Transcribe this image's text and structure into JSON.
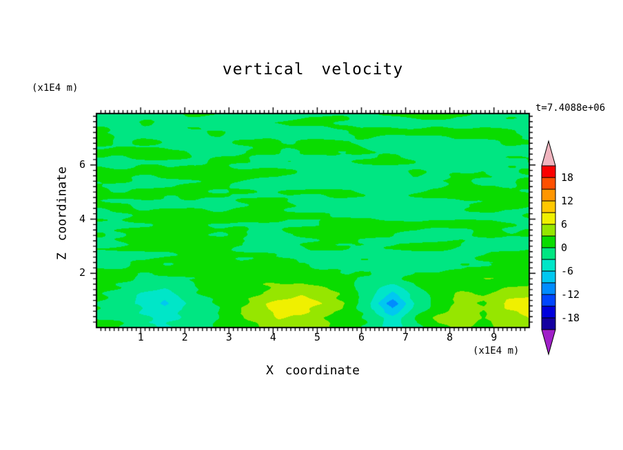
{
  "chart_data": {
    "type": "heatmap",
    "title": "vertical velocity",
    "xlabel": "X coordinate",
    "ylabel": "Z coordinate",
    "x_unit": "(x1E4 m)",
    "y_unit": "(x1E4 m)",
    "time_annotation": "t=7.4088e+06",
    "xlim": [
      0,
      9.8
    ],
    "ylim": [
      0,
      7.9
    ],
    "x_ticks": [
      1,
      2,
      3,
      4,
      5,
      6,
      7,
      8,
      9
    ],
    "y_ticks": [
      2,
      4,
      6
    ],
    "contour_levels": [
      -21,
      -18,
      -15,
      -12,
      -9,
      -6,
      -3,
      0,
      3,
      6,
      9,
      12,
      15,
      18,
      21
    ],
    "contour_colors_low_to_high": [
      "#1400A0",
      "#0000DC",
      "#0046FF",
      "#008CFF",
      "#00C8F0",
      "#00E6C8",
      "#00E682",
      "#0ADC00",
      "#96E600",
      "#F0F000",
      "#FFC800",
      "#FF9600",
      "#FF5000",
      "#FA0000"
    ],
    "under_arrow_color": "#A020C8",
    "over_arrow_color": "#F0B4BE",
    "colorbar_tick_labels": [
      "18",
      "12",
      "6",
      "0",
      "-6",
      "-12",
      "-18"
    ],
    "grid_values": [
      [
        0,
        0,
        0,
        0,
        0,
        0,
        0,
        0,
        0,
        0,
        0,
        0,
        0,
        0,
        0,
        0,
        0,
        0,
        0,
        0
      ],
      [
        0,
        0,
        0,
        0,
        0,
        0,
        0,
        0,
        0,
        0,
        0,
        0,
        0,
        0,
        0,
        0,
        0,
        0,
        0,
        0
      ],
      [
        0,
        0,
        0,
        0,
        0,
        0,
        0,
        0,
        0,
        0,
        0,
        0,
        0,
        0,
        0,
        0,
        0,
        0,
        0,
        0
      ],
      [
        0,
        0,
        0,
        0,
        0,
        0,
        0,
        0,
        0,
        0,
        0,
        0,
        0,
        0,
        0,
        0,
        0,
        0,
        0,
        0
      ],
      [
        0,
        0,
        0,
        0,
        0,
        0,
        0,
        0,
        0,
        0,
        0,
        0,
        0,
        0,
        0,
        0,
        0,
        0,
        0,
        0
      ],
      [
        0,
        0,
        0,
        0,
        0,
        0,
        0,
        0,
        0,
        0,
        0,
        0,
        0,
        0,
        0,
        0,
        0,
        0,
        0,
        0
      ],
      [
        0,
        0,
        0,
        0,
        0,
        0,
        0,
        0,
        0,
        0,
        0,
        0,
        0,
        0,
        0,
        0,
        0,
        0,
        0,
        0
      ],
      [
        1,
        0,
        -1,
        -1,
        0,
        1,
        1,
        2,
        2,
        2,
        1,
        0,
        0,
        -1,
        1,
        1,
        1,
        2,
        2,
        2
      ],
      [
        0,
        -2,
        -4,
        -7,
        -3,
        -1,
        1,
        4,
        7,
        8,
        5,
        2,
        -3,
        -11,
        -2,
        2,
        5,
        3,
        6,
        7
      ],
      [
        1,
        0,
        -2,
        -3,
        -2,
        0,
        2,
        3,
        5,
        4,
        3,
        1,
        0,
        -3,
        0,
        3,
        4,
        3,
        5,
        6
      ]
    ],
    "texture_noise": {
      "amplitude_upper": 1.5,
      "amplitude_lower": 1.0,
      "boundary_z": 2.4,
      "wavelength_x": [
        1.3,
        0.55
      ],
      "wavelength_z": [
        0.38,
        0.18
      ],
      "seed": 7
    }
  }
}
